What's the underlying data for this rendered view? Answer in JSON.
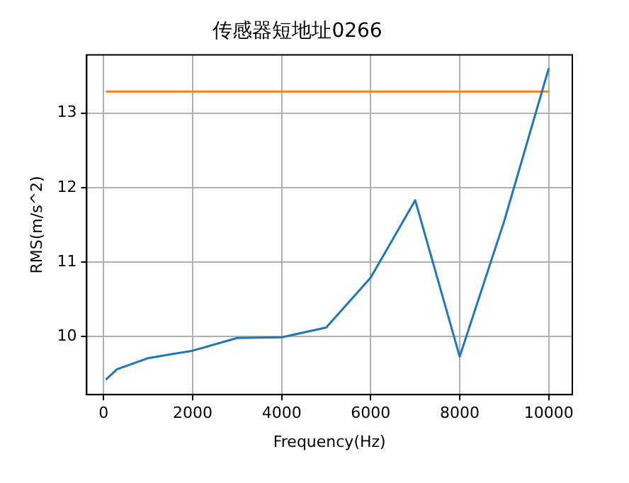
{
  "chart_data": {
    "type": "line",
    "title": "传感器短地址0266",
    "xlabel": "Frequency(Hz)",
    "ylabel": "RMS(m/s^2)",
    "xlim": [
      -380,
      10530
    ],
    "xticks": [
      0,
      2000,
      4000,
      6000,
      8000,
      10000
    ],
    "ylim": [
      9.22,
      13.78
    ],
    "yticks": [
      10,
      11,
      12,
      13
    ],
    "grid": true,
    "series": [
      {
        "color": "#1f77b4",
        "x": [
          50,
          300,
          1000,
          2000,
          3000,
          4000,
          5000,
          6000,
          7000,
          8000,
          9000,
          10000
        ],
        "values": [
          9.42,
          9.56,
          9.71,
          9.81,
          9.98,
          9.99,
          10.12,
          10.79,
          11.83,
          9.73,
          11.55,
          13.6
        ]
      },
      {
        "color": "#ff7f0e",
        "x": [
          50,
          10000
        ],
        "values": [
          13.29,
          13.29
        ]
      }
    ]
  }
}
